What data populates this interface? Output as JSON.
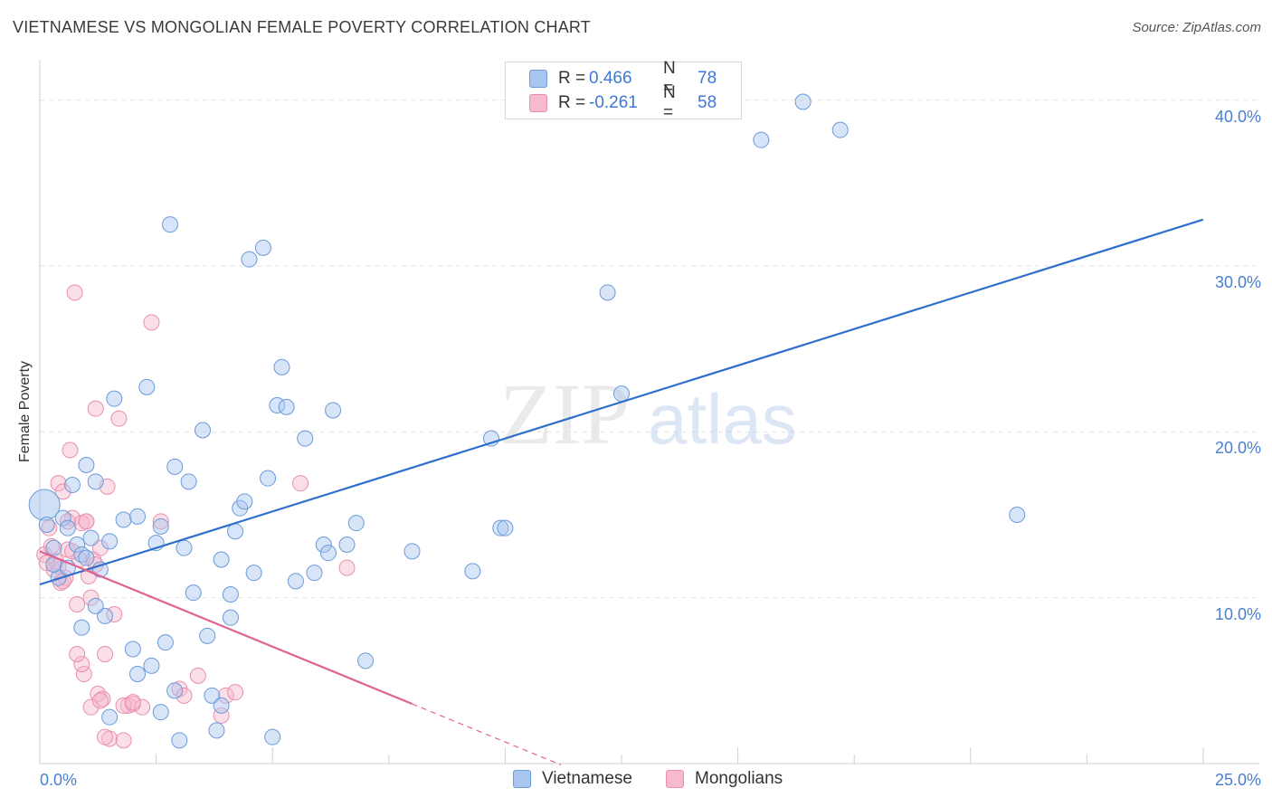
{
  "chart_data": {
    "type": "scatter",
    "title": "VIETNAMESE VS MONGOLIAN FEMALE POVERTY CORRELATION CHART",
    "source": "Source: ZipAtlas.com",
    "xlabel": "",
    "ylabel": "Female Poverty",
    "xlim": [
      0,
      25
    ],
    "ylim": [
      0,
      42
    ],
    "x_tick_labels": [
      "0.0%",
      "25.0%"
    ],
    "y_ticks": [
      10,
      20,
      30,
      40
    ],
    "y_tick_labels": [
      "10.0%",
      "20.0%",
      "30.0%",
      "40.0%"
    ],
    "watermark": "ZIPatlas",
    "colors": {
      "vietnamese_fill": "#a8c6ef",
      "vietnamese_stroke": "#6b9bd9",
      "vietnamese_line": "#2f6fcc",
      "mongolians_fill": "#f7b9cc",
      "mongolians_stroke": "#e98fae",
      "mongolians_line": "#e0628f",
      "tick_text": "#4a7fd0",
      "grid": "#e4e4e4"
    },
    "legend": [
      {
        "r_label": "R =",
        "r_value": "0.466",
        "n_label": "N =",
        "n_value": "78"
      },
      {
        "r_label": "R =",
        "r_value": "-0.261",
        "n_label": "N =",
        "n_value": "58"
      }
    ],
    "series": [
      {
        "name": "Vietnamese",
        "trend": {
          "x0": 0,
          "y0": 10.8,
          "x1": 25,
          "y1": 32.8
        },
        "points": [
          [
            0.1,
            15.6
          ],
          [
            0.15,
            14.4
          ],
          [
            0.3,
            13.0
          ],
          [
            0.4,
            11.2
          ],
          [
            0.5,
            14.8
          ],
          [
            0.6,
            14.2
          ],
          [
            0.7,
            16.8
          ],
          [
            0.8,
            13.2
          ],
          [
            0.9,
            12.6
          ],
          [
            1.0,
            18.0
          ],
          [
            1.1,
            13.6
          ],
          [
            1.2,
            17.0
          ],
          [
            1.3,
            11.7
          ],
          [
            1.4,
            8.9
          ],
          [
            1.5,
            13.4
          ],
          [
            1.6,
            22.0
          ],
          [
            1.8,
            14.7
          ],
          [
            2.0,
            6.9
          ],
          [
            2.1,
            14.9
          ],
          [
            2.3,
            22.7
          ],
          [
            2.5,
            13.3
          ],
          [
            2.6,
            14.3
          ],
          [
            2.7,
            7.3
          ],
          [
            2.8,
            32.5
          ],
          [
            2.9,
            17.9
          ],
          [
            3.1,
            13.0
          ],
          [
            3.2,
            17.0
          ],
          [
            3.3,
            10.3
          ],
          [
            3.5,
            20.1
          ],
          [
            3.7,
            4.1
          ],
          [
            3.8,
            2.0
          ],
          [
            3.9,
            12.3
          ],
          [
            4.1,
            10.2
          ],
          [
            4.2,
            14.0
          ],
          [
            4.3,
            15.4
          ],
          [
            4.4,
            15.8
          ],
          [
            4.5,
            30.4
          ],
          [
            4.6,
            11.5
          ],
          [
            4.8,
            31.1
          ],
          [
            4.9,
            17.2
          ],
          [
            5.1,
            21.6
          ],
          [
            5.2,
            23.9
          ],
          [
            5.3,
            21.5
          ],
          [
            5.5,
            11.0
          ],
          [
            5.7,
            19.6
          ],
          [
            5.9,
            11.5
          ],
          [
            6.1,
            13.2
          ],
          [
            6.2,
            12.7
          ],
          [
            6.3,
            21.3
          ],
          [
            6.6,
            13.2
          ],
          [
            6.8,
            14.5
          ],
          [
            7.0,
            6.2
          ],
          [
            8.0,
            12.8
          ],
          [
            9.3,
            11.6
          ],
          [
            9.7,
            19.6
          ],
          [
            9.9,
            14.2
          ],
          [
            10.0,
            14.2
          ],
          [
            12.2,
            28.4
          ],
          [
            12.5,
            22.3
          ],
          [
            15.5,
            37.6
          ],
          [
            16.4,
            39.9
          ],
          [
            17.2,
            38.2
          ],
          [
            21.0,
            15.0
          ],
          [
            1.5,
            2.8
          ],
          [
            2.4,
            5.9
          ],
          [
            2.6,
            3.1
          ],
          [
            3.0,
            1.4
          ],
          [
            3.6,
            7.7
          ],
          [
            3.9,
            3.5
          ],
          [
            0.9,
            8.2
          ],
          [
            1.0,
            12.4
          ],
          [
            5.0,
            1.6
          ],
          [
            4.1,
            8.8
          ],
          [
            2.1,
            5.4
          ],
          [
            0.3,
            12.0
          ],
          [
            0.6,
            11.8
          ],
          [
            1.2,
            9.5
          ],
          [
            2.9,
            4.4
          ]
        ]
      },
      {
        "name": "Mongolians",
        "trend": {
          "x0": 0,
          "y0": 12.8,
          "x1": 8.0,
          "y1": 3.6,
          "dashed_to_x": 11.2
        },
        "points": [
          [
            0.1,
            12.6
          ],
          [
            0.2,
            14.2
          ],
          [
            0.3,
            11.7
          ],
          [
            0.35,
            12.2
          ],
          [
            0.4,
            16.9
          ],
          [
            0.45,
            10.9
          ],
          [
            0.5,
            16.4
          ],
          [
            0.6,
            12.9
          ],
          [
            0.65,
            18.9
          ],
          [
            0.7,
            14.8
          ],
          [
            0.75,
            28.4
          ],
          [
            0.8,
            9.6
          ],
          [
            0.85,
            12.3
          ],
          [
            0.9,
            14.5
          ],
          [
            0.95,
            5.4
          ],
          [
            1.0,
            14.6
          ],
          [
            1.05,
            11.3
          ],
          [
            1.1,
            10.0
          ],
          [
            1.15,
            12.3
          ],
          [
            1.2,
            21.4
          ],
          [
            1.25,
            4.2
          ],
          [
            1.3,
            13.0
          ],
          [
            1.35,
            3.9
          ],
          [
            1.4,
            6.6
          ],
          [
            1.45,
            16.7
          ],
          [
            1.5,
            1.5
          ],
          [
            1.6,
            9.0
          ],
          [
            1.7,
            20.8
          ],
          [
            1.8,
            1.4
          ],
          [
            1.9,
            3.5
          ],
          [
            2.0,
            3.6
          ],
          [
            2.2,
            3.4
          ],
          [
            2.4,
            26.6
          ],
          [
            2.6,
            14.6
          ],
          [
            3.0,
            4.5
          ],
          [
            3.1,
            4.1
          ],
          [
            3.4,
            5.3
          ],
          [
            3.9,
            2.9
          ],
          [
            4.0,
            4.1
          ],
          [
            4.2,
            4.3
          ],
          [
            5.6,
            16.9
          ],
          [
            6.6,
            11.8
          ],
          [
            0.25,
            13.1
          ],
          [
            0.55,
            11.2
          ],
          [
            0.7,
            12.8
          ],
          [
            1.0,
            14.6
          ],
          [
            1.1,
            3.4
          ],
          [
            1.4,
            1.6
          ],
          [
            1.2,
            12.0
          ],
          [
            0.9,
            6.0
          ],
          [
            0.4,
            11.9
          ],
          [
            0.5,
            11.0
          ],
          [
            0.15,
            12.1
          ],
          [
            1.8,
            3.5
          ],
          [
            0.6,
            14.6
          ],
          [
            1.3,
            3.8
          ],
          [
            2.0,
            3.7
          ],
          [
            0.8,
            6.6
          ]
        ]
      }
    ]
  }
}
